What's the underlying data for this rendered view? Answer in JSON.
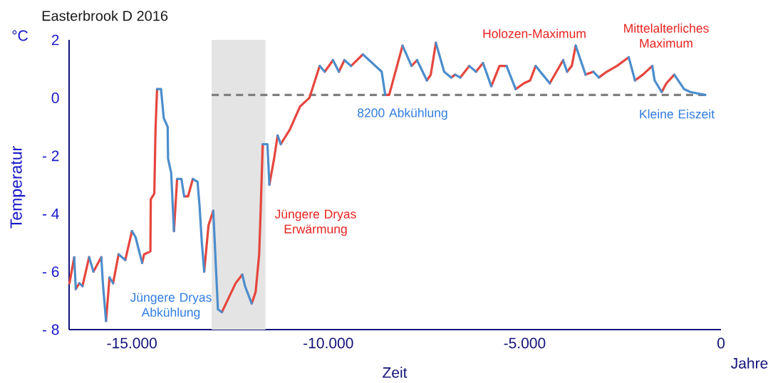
{
  "chart_data": {
    "type": "line",
    "title": "Easterbrook D 2016",
    "xlabel": "Zeit",
    "ylabel": "Temperatur",
    "xlim": [
      -16600,
      0
    ],
    "ylim": [
      -8,
      2
    ],
    "xticks": [
      {
        "value": -15000,
        "label": "-15.000"
      },
      {
        "value": -10000,
        "label": "-10.000"
      },
      {
        "value": -5000,
        "label": "-5.000"
      },
      0
    ],
    "yticks": [
      2,
      0,
      {
        "value": -2,
        "label": "- 2"
      },
      {
        "value": -4,
        "label": "- 4"
      },
      {
        "value": -6,
        "label": "- 6"
      },
      {
        "value": -8,
        "label": "- 8"
      }
    ],
    "bands": [
      {
        "axis": "x",
        "from": -12970,
        "to": -11600,
        "color": "#e4e4e4"
      }
    ],
    "series": [
      {
        "color": "#808080",
        "line_style": "dashed",
        "x": [
          -12970,
          -400
        ],
        "values": [
          0.1,
          0.1
        ]
      },
      {
        "color": "#e5463d",
        "x": [
          -16590,
          -16470,
          null,
          -16430,
          -16340,
          null,
          -16260,
          -16090,
          null,
          -15980,
          -15780,
          null,
          -15660,
          -15570,
          null,
          -15480,
          -15340,
          null,
          -15170,
          -15000,
          null,
          -14740,
          -14690,
          -14530,
          -14520,
          -14430,
          -14400,
          -14360,
          null,
          -13930,
          -13850,
          null,
          -13670,
          -13570,
          -13450,
          null,
          -13160,
          -13050,
          -12930,
          null,
          -12710,
          -12500,
          -12360,
          -12190,
          null,
          -11950,
          -11850,
          -11760,
          -11720,
          -11670,
          null,
          -11500,
          -11380,
          -11290,
          null,
          -11210,
          -10980,
          -10720,
          -10480,
          -10220,
          null,
          -10090,
          -9880,
          null,
          -9730,
          -9590,
          null,
          -9420,
          -9120,
          null,
          -8550,
          -8450,
          -8230,
          -8110,
          null,
          -7880,
          -7740,
          null,
          -7490,
          -7390,
          -7260,
          null,
          -6870,
          -6770,
          null,
          -6640,
          -6410,
          null,
          -6240,
          -6060,
          null,
          -5850,
          -5640,
          -5460,
          null,
          -5230,
          -5020,
          -4860,
          -4720,
          null,
          -4360,
          -4020,
          null,
          -3920,
          -3800,
          -3700,
          null,
          -3450,
          -3250,
          null,
          -3110,
          -2910,
          -2650,
          -2350,
          null,
          -2190,
          -1990,
          -1750,
          null,
          -1510,
          -1390,
          -1190
        ],
        "values": [
          -6.4,
          -5.5,
          null,
          -6.6,
          -6.4,
          null,
          -6.5,
          -5.5,
          null,
          -6.0,
          -5.5,
          null,
          -7.7,
          -6.2,
          null,
          -6.4,
          -5.4,
          null,
          -5.6,
          -4.6,
          null,
          -5.7,
          -5.4,
          -5.3,
          -3.5,
          -3.3,
          -1.1,
          0.3,
          null,
          -4.6,
          -2.8,
          null,
          -3.4,
          -3.4,
          -2.8,
          null,
          -6.0,
          -4.4,
          -3.9,
          null,
          -7.4,
          -6.8,
          -6.4,
          -6.1,
          null,
          -7.1,
          -6.7,
          -5.4,
          -3.8,
          -1.6,
          null,
          -3.0,
          -2.1,
          -1.3,
          null,
          -1.6,
          -1.1,
          -0.3,
          0.0,
          1.1,
          null,
          0.9,
          1.3,
          null,
          0.9,
          1.3,
          null,
          1.1,
          1.5,
          null,
          0.1,
          0.1,
          1.2,
          1.8,
          null,
          1.1,
          1.3,
          null,
          0.6,
          0.8,
          1.9,
          null,
          0.7,
          0.8,
          null,
          0.7,
          1.1,
          null,
          0.9,
          1.2,
          null,
          0.4,
          1.1,
          1.1,
          null,
          0.3,
          0.5,
          0.6,
          1.1,
          null,
          0.5,
          1.3,
          null,
          0.9,
          1.1,
          1.8,
          null,
          0.8,
          0.9,
          null,
          0.7,
          0.9,
          1.1,
          1.4,
          null,
          0.6,
          0.8,
          1.1,
          null,
          0.2,
          0.5,
          0.8
        ]
      },
      {
        "color": "#4c8dcc",
        "x": [
          -16470,
          -16430,
          null,
          -16340,
          -16260,
          null,
          -16090,
          -15980,
          null,
          -15780,
          -15740,
          -15660,
          null,
          -15570,
          -15480,
          null,
          -15340,
          -15170,
          null,
          -15000,
          -14910,
          -14740,
          null,
          -14360,
          -14260,
          -14190,
          -14090,
          -14080,
          -14000,
          -13930,
          null,
          -13850,
          -13740,
          -13670,
          null,
          -13450,
          -13330,
          -13280,
          -13220,
          -13160,
          null,
          -12930,
          -12810,
          -12710,
          null,
          -12190,
          -12120,
          -11950,
          null,
          -11670,
          -11550,
          -11500,
          null,
          -11290,
          -11210,
          null,
          -10220,
          -10090,
          null,
          -9880,
          -9730,
          null,
          -9590,
          -9420,
          null,
          -9120,
          -8640,
          -8550,
          null,
          -8110,
          -7880,
          null,
          -7740,
          -7490,
          null,
          -7260,
          -7050,
          -6870,
          null,
          -6770,
          -6640,
          null,
          -6410,
          -6240,
          null,
          -6060,
          -5850,
          null,
          -5460,
          -5230,
          null,
          -4720,
          -4360,
          null,
          -4020,
          -3920,
          null,
          -3700,
          -3450,
          null,
          -3250,
          -3110,
          null,
          -2350,
          -2190,
          null,
          -1750,
          -1690,
          -1510,
          null,
          -1190,
          -940,
          -780,
          -400
        ],
        "values": [
          -5.5,
          -6.6,
          null,
          -6.4,
          -6.5,
          null,
          -5.5,
          -6.0,
          null,
          -5.5,
          -6.4,
          -7.7,
          null,
          -6.2,
          -6.4,
          null,
          -5.4,
          -5.6,
          null,
          -4.6,
          -4.8,
          -5.7,
          null,
          0.3,
          0.3,
          -0.7,
          -1.0,
          -2.1,
          -2.6,
          -4.6,
          null,
          -2.8,
          -2.8,
          -3.4,
          null,
          -2.8,
          -2.9,
          -3.7,
          -5.0,
          -6.0,
          null,
          -3.9,
          -7.3,
          -7.4,
          null,
          -6.1,
          -6.5,
          -7.1,
          null,
          -1.6,
          -1.6,
          -3.0,
          null,
          -1.3,
          -1.6,
          null,
          1.1,
          0.9,
          null,
          1.3,
          0.9,
          null,
          1.3,
          1.1,
          null,
          1.5,
          0.9,
          0.1,
          null,
          1.8,
          1.1,
          null,
          1.3,
          0.6,
          null,
          1.9,
          0.9,
          0.7,
          null,
          0.8,
          0.7,
          null,
          1.1,
          0.9,
          null,
          1.2,
          0.4,
          null,
          1.1,
          0.3,
          null,
          1.1,
          0.5,
          null,
          1.3,
          0.9,
          null,
          1.8,
          0.8,
          null,
          0.9,
          0.7,
          null,
          1.4,
          0.6,
          null,
          1.1,
          0.6,
          0.2,
          null,
          0.8,
          0.3,
          0.2,
          0.1
        ]
      }
    ],
    "annotations": [
      "°C",
      "Jahre",
      "Jüngere Dryas Abkühlung",
      "Jüngere Dryas Erwärmung",
      "8200 Abkühlung",
      "Holozen-Maximum",
      "Mittelalterliches Maximum",
      "Kleine Eiszeit"
    ]
  }
}
